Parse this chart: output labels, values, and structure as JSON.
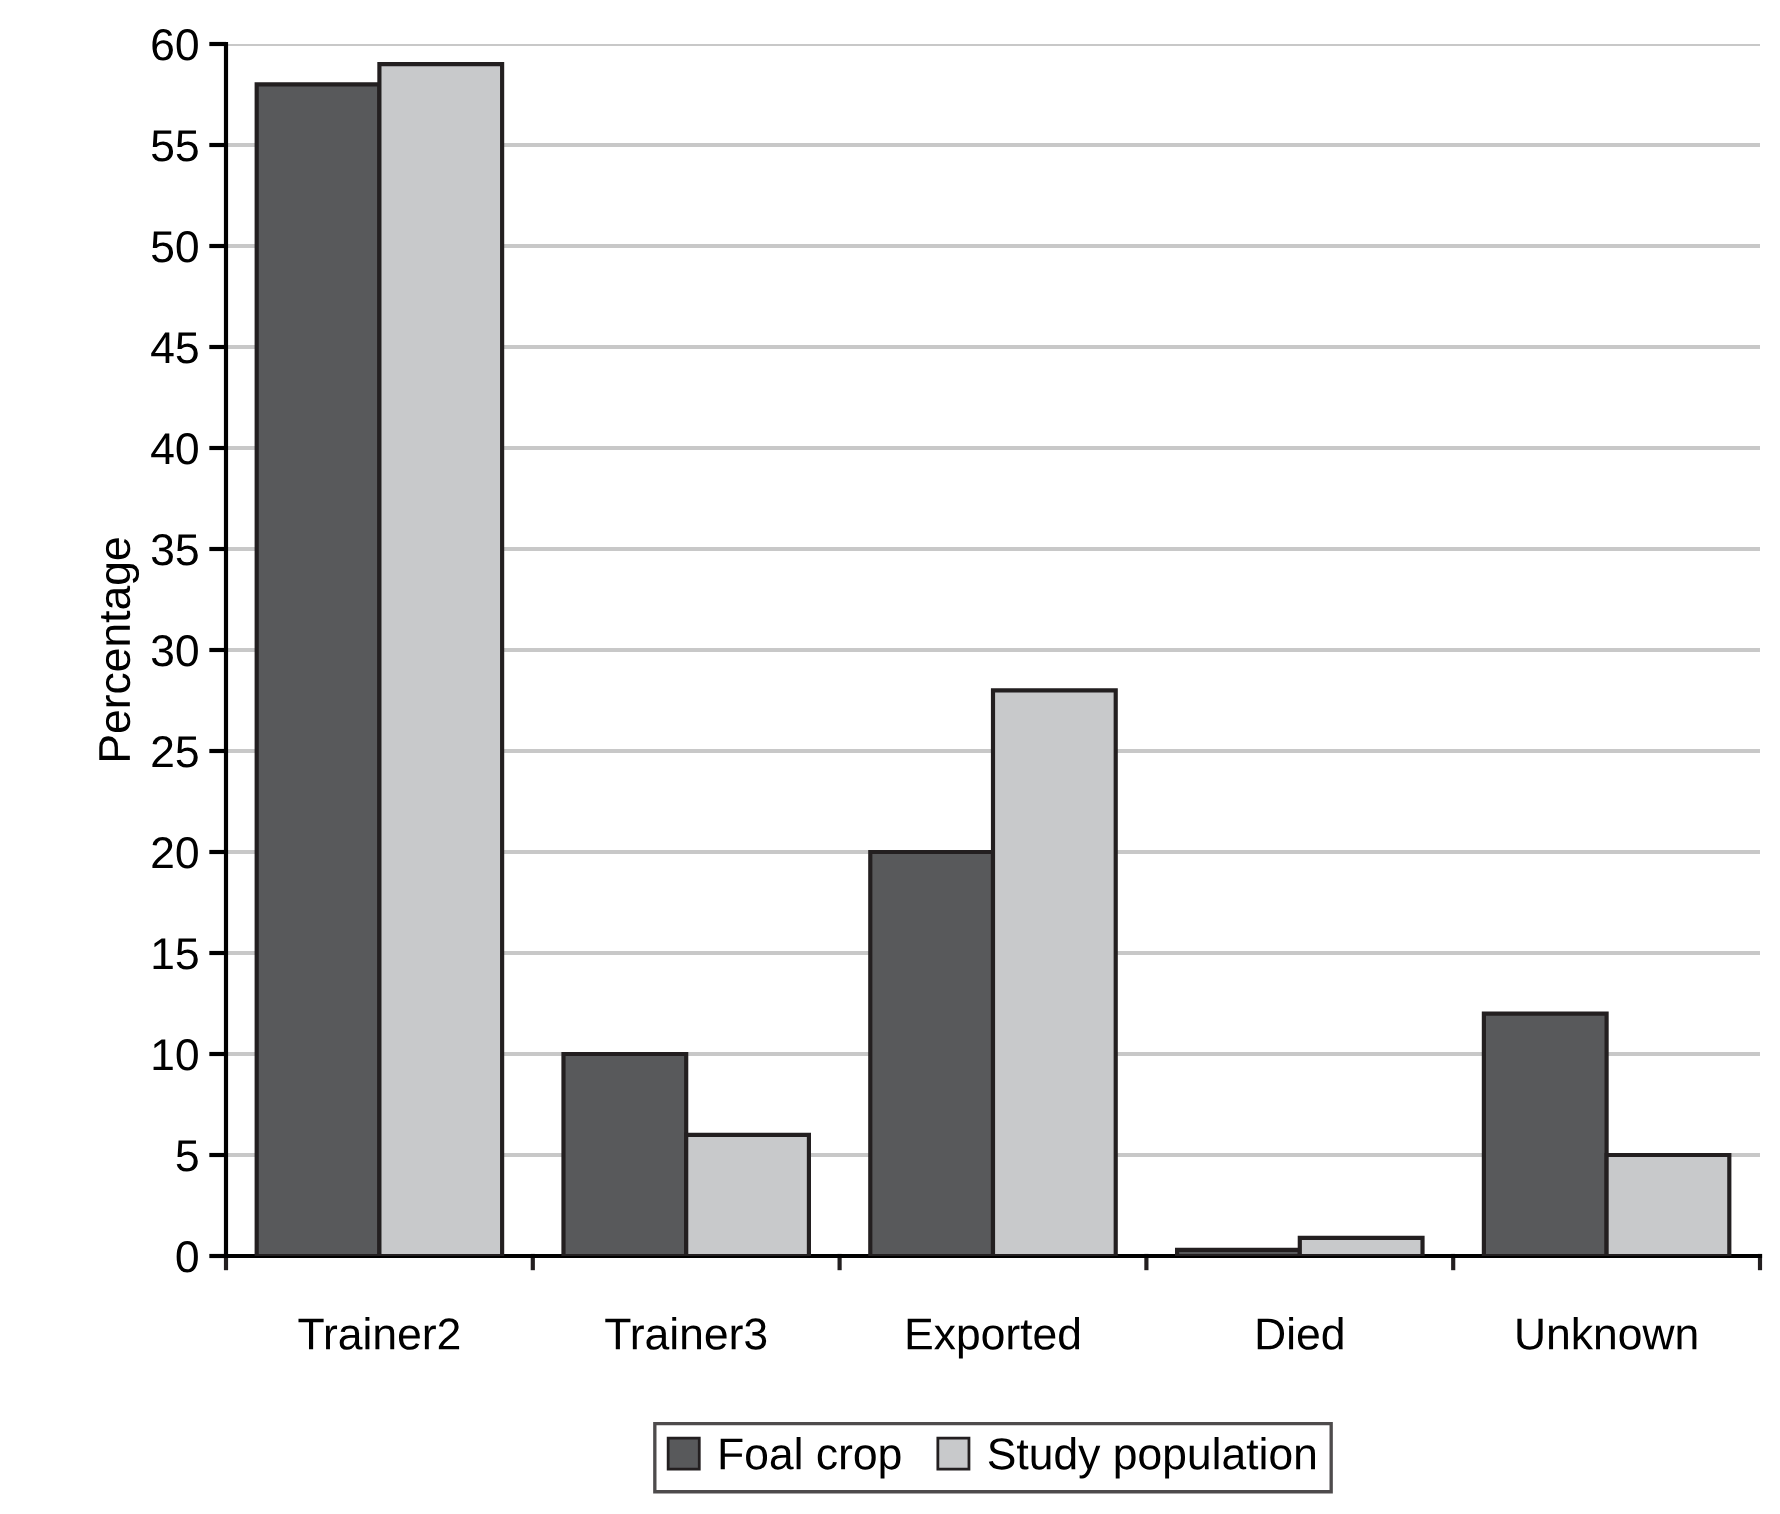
{
  "chart_data": {
    "type": "bar",
    "ylabel": "Percentage",
    "categories": [
      "Trainer2",
      "Trainer3",
      "Exported",
      "Died",
      "Unknown"
    ],
    "series": [
      {
        "name": "Foal crop",
        "color": "#58595b",
        "values": [
          58,
          10,
          20,
          0.3,
          12
        ]
      },
      {
        "name": "Study population",
        "color": "#c8c9cb",
        "values": [
          59,
          6,
          28,
          0.9,
          5
        ]
      }
    ],
    "ylim": [
      0,
      60
    ],
    "yticks": [
      0,
      5,
      10,
      15,
      20,
      25,
      30,
      35,
      40,
      45,
      50,
      55,
      60
    ],
    "grid": "y",
    "legend": "bottom"
  }
}
